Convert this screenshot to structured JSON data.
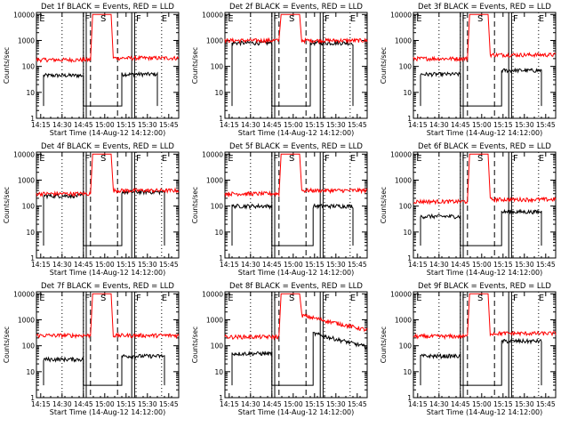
{
  "figure": {
    "colors": {
      "events": "#000000",
      "lld": "#ff0000",
      "axes": "#000000",
      "background": "#ffffff"
    },
    "shared_axes": {
      "xlabel": "Start Time (14-Aug-12 14:12:00)",
      "ylabel": "Counts/sec",
      "x_ticks": [
        "14:15",
        "14:30",
        "14:45",
        "15:00",
        "15:15",
        "15:30",
        "15:45"
      ],
      "x_ticks_minutes_since_1412": [
        3,
        18,
        33,
        48,
        63,
        78,
        93
      ],
      "y_scale": "log",
      "y_ticks": [
        "1",
        "10",
        "100",
        "1000",
        "10000"
      ],
      "ylim": [
        1,
        12000
      ],
      "xlim_minutes_since_1412": [
        0,
        100
      ]
    },
    "markers": {
      "labels": [
        "E",
        "F",
        "S",
        "F",
        "E"
      ],
      "dotted_minutes_since_1412": [
        18,
        33,
        70,
        88
      ],
      "dashed_minutes_since_1412": [
        38,
        57
      ]
    }
  },
  "chart_data": [
    {
      "type": "line",
      "title": "Det 1f BLACK = Events, RED = LLD",
      "series": [
        {
          "name": "Events",
          "segments": [
            {
              "x0": 5,
              "x1": 33,
              "level": 45
            },
            {
              "x0": 60,
              "x1": 85,
              "level": 50
            }
          ]
        },
        {
          "name": "LLD",
          "segments": [
            {
              "x0": 0,
              "x1": 38,
              "level": 180
            },
            {
              "x0": 54,
              "x1": 100,
              "level": 210
            }
          ],
          "peak": 10000
        }
      ]
    },
    {
      "type": "line",
      "title": "Det 2f BLACK = Events, RED = LLD",
      "series": [
        {
          "name": "Events",
          "segments": [
            {
              "x0": 5,
              "x1": 33,
              "level": 800
            },
            {
              "x0": 60,
              "x1": 90,
              "level": 800
            }
          ]
        },
        {
          "name": "LLD",
          "segments": [
            {
              "x0": 0,
              "x1": 38,
              "level": 1000
            },
            {
              "x0": 54,
              "x1": 100,
              "level": 1000
            }
          ],
          "peak": 10000
        }
      ]
    },
    {
      "type": "line",
      "title": "Det 3f BLACK = Events, RED = LLD",
      "series": [
        {
          "name": "Events",
          "segments": [
            {
              "x0": 5,
              "x1": 33,
              "level": 50
            },
            {
              "x0": 62,
              "x1": 90,
              "level": 70
            }
          ]
        },
        {
          "name": "LLD",
          "segments": [
            {
              "x0": 0,
              "x1": 38,
              "level": 200
            },
            {
              "x0": 54,
              "x1": 100,
              "level": 280
            }
          ],
          "peak": 10000
        }
      ]
    },
    {
      "type": "line",
      "title": "Det 4f BLACK = Events, RED = LLD",
      "series": [
        {
          "name": "Events",
          "segments": [
            {
              "x0": 5,
              "x1": 33,
              "level": 250
            },
            {
              "x0": 60,
              "x1": 90,
              "level": 350
            }
          ]
        },
        {
          "name": "LLD",
          "segments": [
            {
              "x0": 0,
              "x1": 38,
              "level": 300
            },
            {
              "x0": 54,
              "x1": 100,
              "level": 400
            }
          ],
          "peak": 10000
        }
      ]
    },
    {
      "type": "line",
      "title": "Det 5f BLACK = Events, RED = LLD",
      "series": [
        {
          "name": "Events",
          "segments": [
            {
              "x0": 5,
              "x1": 33,
              "level": 100
            },
            {
              "x0": 62,
              "x1": 90,
              "level": 100
            }
          ]
        },
        {
          "name": "LLD",
          "segments": [
            {
              "x0": 0,
              "x1": 38,
              "level": 300
            },
            {
              "x0": 54,
              "x1": 100,
              "level": 400
            }
          ],
          "peak": 10000
        }
      ]
    },
    {
      "type": "line",
      "title": "Det 6f BLACK = Events, RED = LLD",
      "series": [
        {
          "name": "Events",
          "segments": [
            {
              "x0": 5,
              "x1": 33,
              "level": 40
            },
            {
              "x0": 62,
              "x1": 90,
              "level": 60
            }
          ]
        },
        {
          "name": "LLD",
          "segments": [
            {
              "x0": 0,
              "x1": 38,
              "level": 150
            },
            {
              "x0": 54,
              "x1": 100,
              "level": 180
            }
          ],
          "peak": 10000
        }
      ]
    },
    {
      "type": "line",
      "title": "Det 7f BLACK = Events, RED = LLD",
      "series": [
        {
          "name": "Events",
          "segments": [
            {
              "x0": 5,
              "x1": 33,
              "level": 30
            },
            {
              "x0": 60,
              "x1": 90,
              "level": 40
            }
          ]
        },
        {
          "name": "LLD",
          "segments": [
            {
              "x0": 0,
              "x1": 38,
              "level": 250
            },
            {
              "x0": 54,
              "x1": 100,
              "level": 250
            }
          ],
          "peak": 10000
        }
      ]
    },
    {
      "type": "line",
      "title": "Det 8f BLACK = Events, RED = LLD",
      "series": [
        {
          "name": "Events",
          "segments": [
            {
              "x0": 5,
              "x1": 33,
              "level": 50
            },
            {
              "x0": 62,
              "x1": 100,
              "level": 300,
              "end_level": 90
            }
          ]
        },
        {
          "name": "LLD",
          "segments": [
            {
              "x0": 0,
              "x1": 38,
              "level": 220
            },
            {
              "x0": 54,
              "x1": 100,
              "level": 1500,
              "end_level": 400
            }
          ],
          "peak": 10000
        }
      ]
    },
    {
      "type": "line",
      "title": "Det 9f BLACK = Events, RED = LLD",
      "series": [
        {
          "name": "Events",
          "segments": [
            {
              "x0": 5,
              "x1": 33,
              "level": 40
            },
            {
              "x0": 62,
              "x1": 90,
              "level": 150
            }
          ]
        },
        {
          "name": "LLD",
          "segments": [
            {
              "x0": 0,
              "x1": 38,
              "level": 230
            },
            {
              "x0": 54,
              "x1": 100,
              "level": 300
            }
          ],
          "peak": 10000
        }
      ]
    }
  ]
}
